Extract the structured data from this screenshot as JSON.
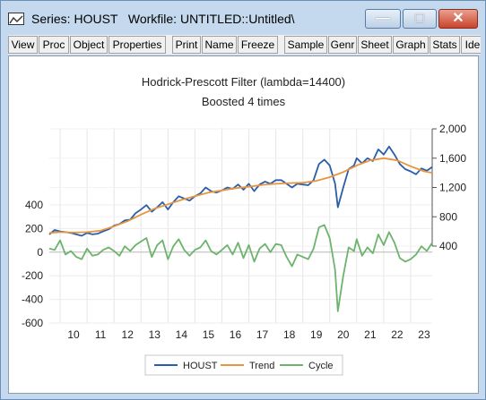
{
  "window": {
    "title": "Series: HOUST   Workfile: UNTITLED::Untitled\\",
    "icon": "graph-window-icon",
    "minimize_glyph": "—",
    "maximize_glyph": "□",
    "close_glyph": "✕"
  },
  "toolbar": {
    "items": [
      "View",
      "Proc",
      "Object",
      "Properties",
      "Print",
      "Name",
      "Freeze",
      "Sample",
      "Genr",
      "Sheet",
      "Graph",
      "Stats",
      "Ide"
    ]
  },
  "chart_data": {
    "type": "line",
    "title": "Hodrick-Prescott Filter (lambda=14400)",
    "subtitle": "Boosted 4 times",
    "xlabel": "",
    "ylabel": "",
    "x_ticks": [
      "10",
      "11",
      "12",
      "13",
      "14",
      "15",
      "16",
      "17",
      "18",
      "19",
      "20",
      "21",
      "22",
      "23"
    ],
    "x_range": [
      2009.6,
      2023.8
    ],
    "left_axis": {
      "ticks": [
        "400",
        "200",
        "0",
        "-200",
        "-400",
        "-600"
      ],
      "range": [
        -600,
        500
      ]
    },
    "right_axis": {
      "ticks": [
        "400",
        "800",
        "1,200",
        "1,600",
        "2,000"
      ],
      "range": [
        300,
        2000
      ]
    },
    "grid": true,
    "legend_position": "bottom",
    "series": [
      {
        "name": "HOUST",
        "axis": "right",
        "color": "#2b5ea8",
        "points": [
          [
            2009.6,
            560
          ],
          [
            2009.8,
            620
          ],
          [
            2010.0,
            600
          ],
          [
            2010.2,
            590
          ],
          [
            2010.4,
            580
          ],
          [
            2010.6,
            560
          ],
          [
            2010.8,
            540
          ],
          [
            2011.0,
            580
          ],
          [
            2011.2,
            560
          ],
          [
            2011.4,
            570
          ],
          [
            2011.6,
            600
          ],
          [
            2011.8,
            630
          ],
          [
            2012.0,
            680
          ],
          [
            2012.2,
            700
          ],
          [
            2012.4,
            750
          ],
          [
            2012.6,
            760
          ],
          [
            2012.8,
            850
          ],
          [
            2013.0,
            900
          ],
          [
            2013.2,
            960
          ],
          [
            2013.4,
            870
          ],
          [
            2013.6,
            930
          ],
          [
            2013.8,
            1000
          ],
          [
            2014.0,
            900
          ],
          [
            2014.2,
            1000
          ],
          [
            2014.4,
            1080
          ],
          [
            2014.6,
            1050
          ],
          [
            2014.8,
            1020
          ],
          [
            2015.0,
            1080
          ],
          [
            2015.2,
            1120
          ],
          [
            2015.4,
            1200
          ],
          [
            2015.6,
            1150
          ],
          [
            2015.8,
            1130
          ],
          [
            2016.0,
            1160
          ],
          [
            2016.2,
            1200
          ],
          [
            2016.4,
            1180
          ],
          [
            2016.6,
            1240
          ],
          [
            2016.8,
            1170
          ],
          [
            2017.0,
            1250
          ],
          [
            2017.2,
            1150
          ],
          [
            2017.4,
            1240
          ],
          [
            2017.6,
            1280
          ],
          [
            2017.8,
            1250
          ],
          [
            2018.0,
            1300
          ],
          [
            2018.2,
            1300
          ],
          [
            2018.4,
            1250
          ],
          [
            2018.6,
            1200
          ],
          [
            2018.8,
            1250
          ],
          [
            2019.0,
            1240
          ],
          [
            2019.2,
            1230
          ],
          [
            2019.4,
            1300
          ],
          [
            2019.6,
            1520
          ],
          [
            2019.8,
            1580
          ],
          [
            2020.0,
            1500
          ],
          [
            2020.2,
            1250
          ],
          [
            2020.3,
            930
          ],
          [
            2020.5,
            1200
          ],
          [
            2020.7,
            1450
          ],
          [
            2020.9,
            1500
          ],
          [
            2021.0,
            1600
          ],
          [
            2021.2,
            1530
          ],
          [
            2021.4,
            1600
          ],
          [
            2021.6,
            1560
          ],
          [
            2021.8,
            1720
          ],
          [
            2022.0,
            1650
          ],
          [
            2022.2,
            1760
          ],
          [
            2022.4,
            1650
          ],
          [
            2022.6,
            1520
          ],
          [
            2022.8,
            1450
          ],
          [
            2023.0,
            1420
          ],
          [
            2023.2,
            1380
          ],
          [
            2023.4,
            1460
          ],
          [
            2023.6,
            1430
          ],
          [
            2023.8,
            1480
          ]
        ]
      },
      {
        "name": "Trend",
        "axis": "right",
        "color": "#e8953f",
        "points": [
          [
            2009.6,
            580
          ],
          [
            2010.0,
            590
          ],
          [
            2010.5,
            585
          ],
          [
            2011.0,
            590
          ],
          [
            2011.5,
            610
          ],
          [
            2012.0,
            670
          ],
          [
            2012.5,
            740
          ],
          [
            2013.0,
            830
          ],
          [
            2013.5,
            910
          ],
          [
            2014.0,
            970
          ],
          [
            2014.5,
            1030
          ],
          [
            2015.0,
            1080
          ],
          [
            2015.5,
            1130
          ],
          [
            2016.0,
            1160
          ],
          [
            2016.5,
            1190
          ],
          [
            2017.0,
            1210
          ],
          [
            2017.5,
            1235
          ],
          [
            2018.0,
            1250
          ],
          [
            2018.5,
            1260
          ],
          [
            2019.0,
            1265
          ],
          [
            2019.5,
            1290
          ],
          [
            2020.0,
            1340
          ],
          [
            2020.5,
            1410
          ],
          [
            2021.0,
            1500
          ],
          [
            2021.5,
            1570
          ],
          [
            2022.0,
            1600
          ],
          [
            2022.5,
            1570
          ],
          [
            2023.0,
            1490
          ],
          [
            2023.5,
            1420
          ],
          [
            2023.8,
            1400
          ]
        ]
      },
      {
        "name": "Cycle",
        "axis": "left",
        "color": "#6db36d",
        "points": [
          [
            2009.6,
            30
          ],
          [
            2009.8,
            20
          ],
          [
            2010.0,
            100
          ],
          [
            2010.2,
            -20
          ],
          [
            2010.4,
            10
          ],
          [
            2010.6,
            -40
          ],
          [
            2010.8,
            -60
          ],
          [
            2011.0,
            30
          ],
          [
            2011.2,
            -30
          ],
          [
            2011.4,
            -20
          ],
          [
            2011.6,
            20
          ],
          [
            2011.8,
            40
          ],
          [
            2012.0,
            10
          ],
          [
            2012.2,
            -30
          ],
          [
            2012.4,
            50
          ],
          [
            2012.6,
            10
          ],
          [
            2012.8,
            60
          ],
          [
            2013.0,
            90
          ],
          [
            2013.2,
            120
          ],
          [
            2013.4,
            -40
          ],
          [
            2013.6,
            60
          ],
          [
            2013.8,
            100
          ],
          [
            2014.0,
            -60
          ],
          [
            2014.2,
            50
          ],
          [
            2014.4,
            110
          ],
          [
            2014.6,
            20
          ],
          [
            2014.8,
            -30
          ],
          [
            2015.0,
            20
          ],
          [
            2015.2,
            40
          ],
          [
            2015.4,
            100
          ],
          [
            2015.6,
            10
          ],
          [
            2015.8,
            -20
          ],
          [
            2016.0,
            20
          ],
          [
            2016.2,
            60
          ],
          [
            2016.4,
            -20
          ],
          [
            2016.6,
            80
          ],
          [
            2016.8,
            -50
          ],
          [
            2017.0,
            60
          ],
          [
            2017.2,
            -80
          ],
          [
            2017.4,
            30
          ],
          [
            2017.6,
            70
          ],
          [
            2017.8,
            0
          ],
          [
            2018.0,
            70
          ],
          [
            2018.2,
            60
          ],
          [
            2018.4,
            -40
          ],
          [
            2018.6,
            -120
          ],
          [
            2018.8,
            -20
          ],
          [
            2019.0,
            -40
          ],
          [
            2019.2,
            -60
          ],
          [
            2019.4,
            30
          ],
          [
            2019.6,
            210
          ],
          [
            2019.8,
            230
          ],
          [
            2020.0,
            120
          ],
          [
            2020.2,
            -150
          ],
          [
            2020.3,
            -500
          ],
          [
            2020.5,
            -200
          ],
          [
            2020.7,
            40
          ],
          [
            2020.9,
            10
          ],
          [
            2021.0,
            110
          ],
          [
            2021.2,
            -30
          ],
          [
            2021.4,
            40
          ],
          [
            2021.6,
            -10
          ],
          [
            2021.8,
            150
          ],
          [
            2022.0,
            60
          ],
          [
            2022.2,
            170
          ],
          [
            2022.4,
            80
          ],
          [
            2022.6,
            -50
          ],
          [
            2022.8,
            -80
          ],
          [
            2023.0,
            -60
          ],
          [
            2023.2,
            -20
          ],
          [
            2023.4,
            50
          ],
          [
            2023.6,
            10
          ],
          [
            2023.8,
            80
          ]
        ]
      }
    ]
  }
}
